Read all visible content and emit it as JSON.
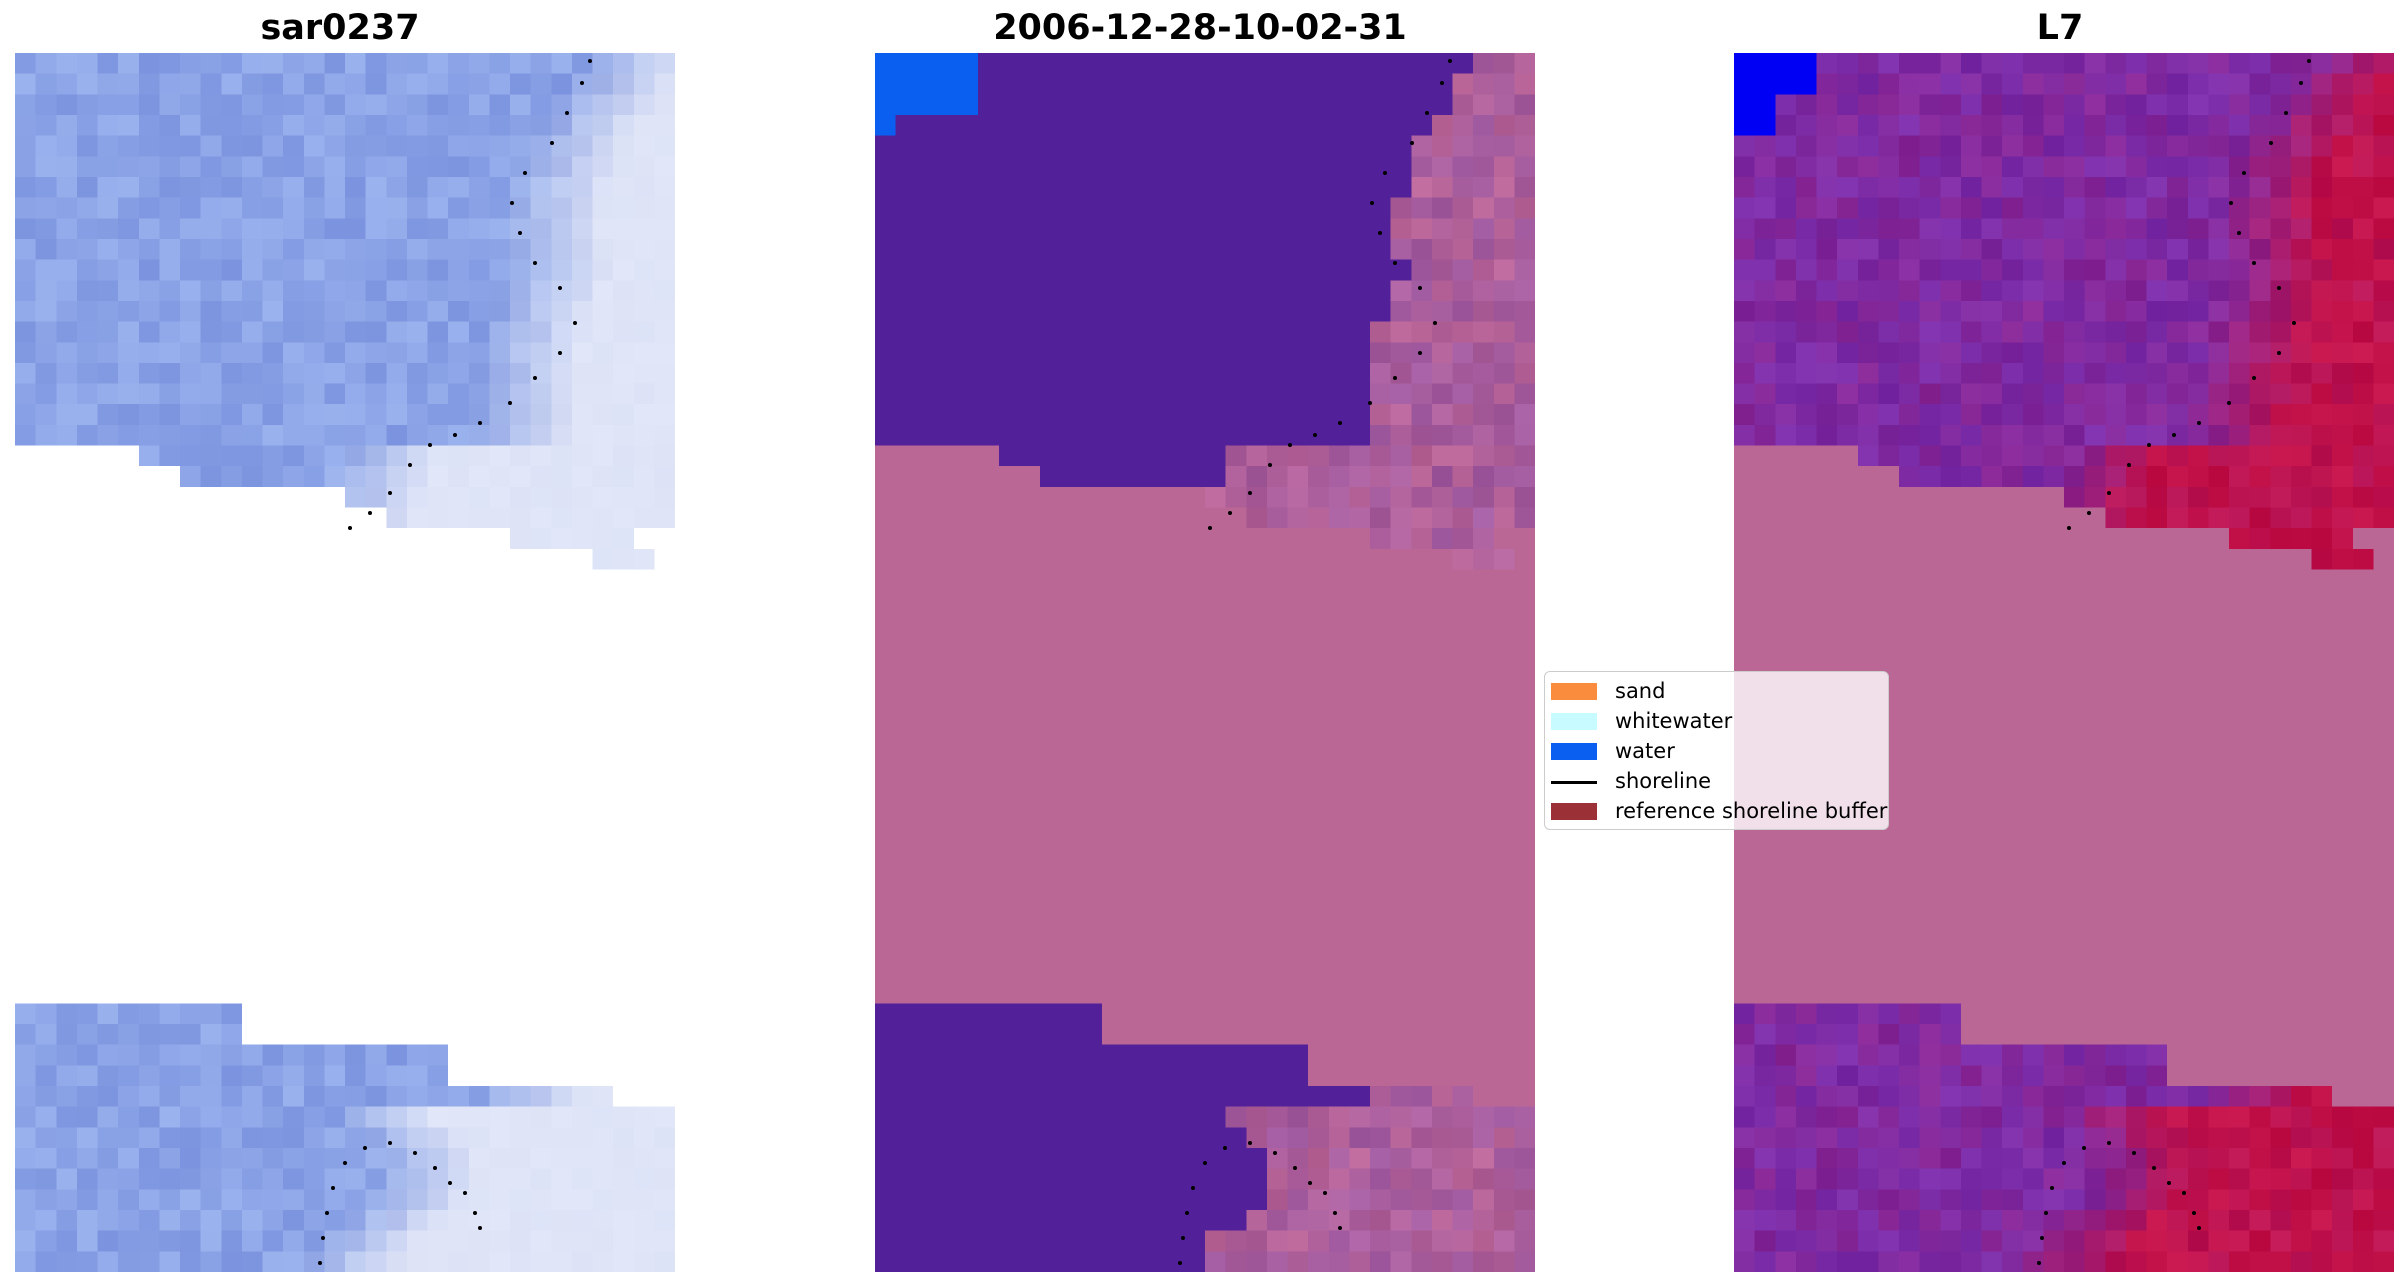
{
  "panels": [
    {
      "title": "sar0237",
      "kind": "rgb"
    },
    {
      "title": "2006-12-28-10-02-31",
      "kind": "classified"
    },
    {
      "title": "L7",
      "kind": "index"
    }
  ],
  "legend": {
    "items": [
      {
        "label": "sand",
        "color": "#f98d3d",
        "type": "patch"
      },
      {
        "label": "whitewater",
        "color": "#c8fbff",
        "type": "patch"
      },
      {
        "label": "water",
        "color": "#0b5ff0",
        "type": "patch"
      },
      {
        "label": "shoreline",
        "color": "#000000",
        "type": "line"
      },
      {
        "label": "reference shoreline buffer",
        "color": "#9b3137",
        "type": "patch"
      }
    ]
  },
  "colors": {
    "buffer": "#bb6796",
    "water_class": "#52219a",
    "water_blue": "#0b5ff0",
    "index_low": "#7a2ca8",
    "index_high": "#c21048",
    "index_water": "#0000f5",
    "sar_base": "#8ba3e6",
    "shoreline": "#000000"
  }
}
